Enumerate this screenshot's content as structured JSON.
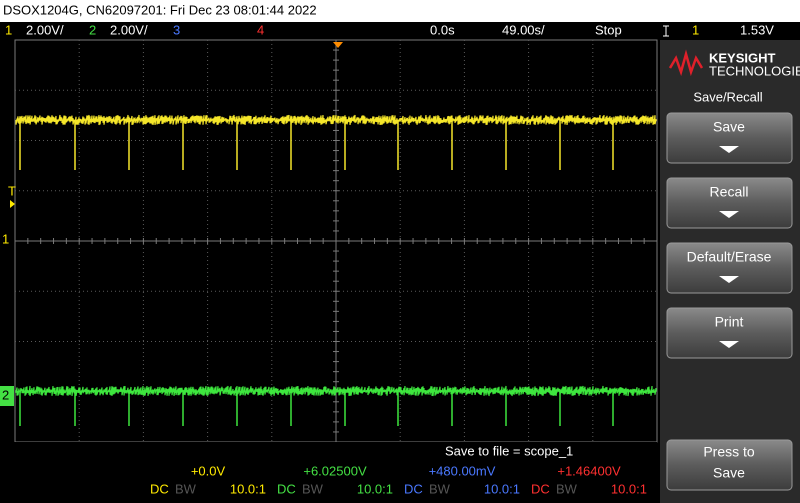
{
  "header": {
    "title": "DSOX1204G, CN62097201: Fri Dec 23 08:01:44 2022"
  },
  "status_bar": {
    "ch1": "1",
    "ch1_scale": "2.00V/",
    "ch2": "2",
    "ch2_scale": "2.00V/",
    "ch3": "3",
    "ch4": "4",
    "delay": "0.0s",
    "timebase": "49.00s/",
    "run_state": "Stop",
    "trigger_source": "1",
    "trigger_level": "1.53V"
  },
  "brand": {
    "name": "KEYSIGHT",
    "subtitle": "TECHNOLOGIES"
  },
  "menu": {
    "title": "Save/Recall",
    "buttons": [
      "Save",
      "Recall",
      "Default/Erase",
      "Print"
    ],
    "press_to_save": [
      "Press to",
      "Save"
    ]
  },
  "message": "Save to file = scope_1",
  "channels": [
    {
      "offset": "+0.0V",
      "coupling": "DC",
      "bandwidth": "BW",
      "probe": "10.0:1"
    },
    {
      "offset": "+6.02500V",
      "coupling": "DC",
      "bandwidth": "BW",
      "probe": "10.0:1"
    },
    {
      "offset": "+480.00mV",
      "coupling": "DC",
      "bandwidth": "BW",
      "probe": "10.0:1"
    },
    {
      "offset": "+1.46400V",
      "coupling": "DC",
      "bandwidth": "BW",
      "probe": "10.0:1"
    }
  ],
  "markers": {
    "trigger": "T",
    "ch1": "1",
    "ch2": "2"
  }
}
